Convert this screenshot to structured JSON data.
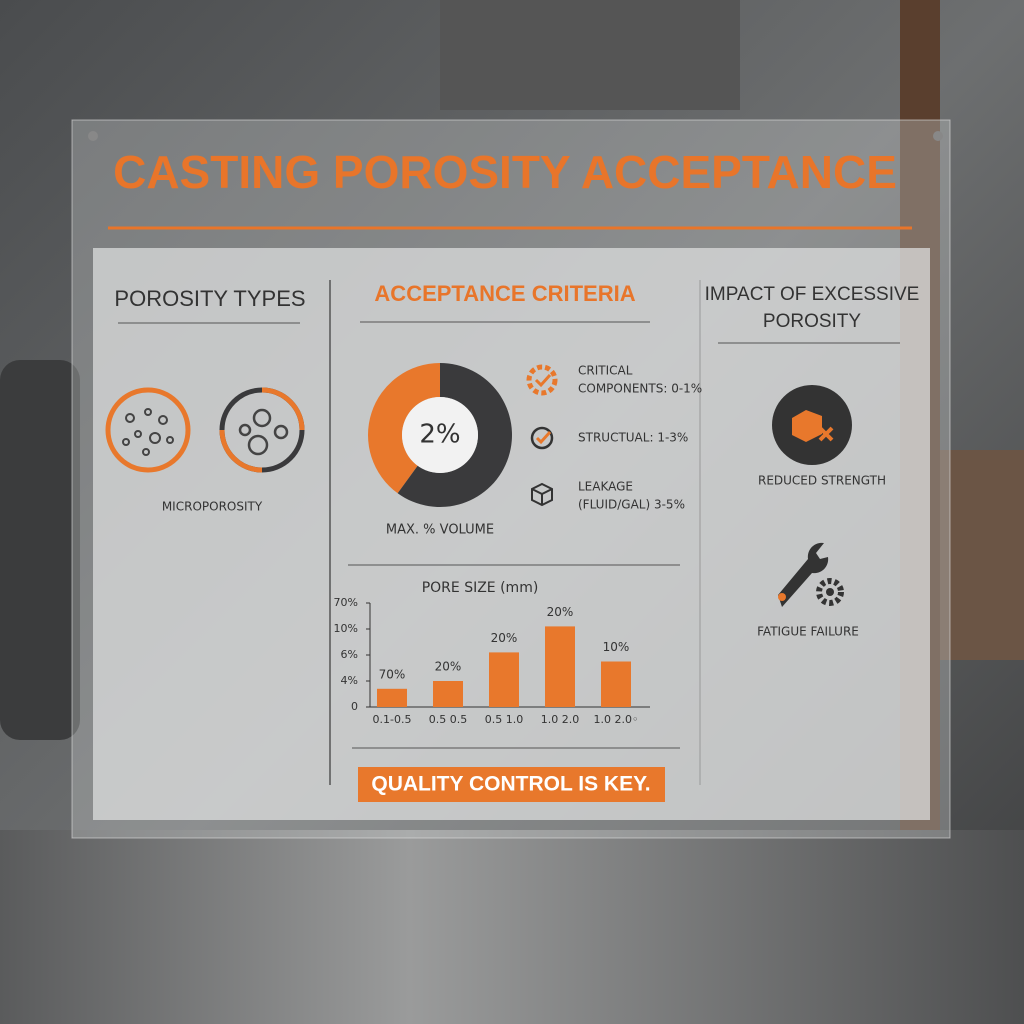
{
  "title": "CASTING POROSITY ACCEPTANCE",
  "porosity_types": {
    "heading": "POROSITY TYPES",
    "label": "MICROPOROSITY"
  },
  "acceptance_criteria": {
    "heading": "ACCEPTANCE CRITERIA",
    "items": [
      {
        "lines": [
          "CRITICAL",
          "COMPONENTS: 0-1%"
        ]
      },
      {
        "lines": [
          "STRUCTUAL: 1-3%"
        ]
      },
      {
        "lines": [
          "LEAKAGE",
          "(FLUID/GAL) 3-5%"
        ]
      }
    ]
  },
  "impact": {
    "heading_lines": [
      "IMPACT OF EXCESSIVE",
      "POROSITY"
    ],
    "items": [
      "REDUCED STRENGTH",
      "FATIGUE FAILURE"
    ]
  },
  "footer": "QUALITY CONTROL IS KEY.",
  "chart_data": [
    {
      "type": "pie",
      "donut": true,
      "center_label": "2%",
      "caption": "MAX. % VOLUME",
      "values": [
        40,
        60
      ],
      "colors": [
        "#e8782c",
        "#3a3a3c"
      ]
    },
    {
      "type": "bar",
      "title": "PORE SIZE (mm)",
      "categories": [
        "0.1-0.5",
        "0.5 0.5",
        "0.5 1.0",
        "1.0 2.0",
        "1.0 2.0◦"
      ],
      "values": [
        0.7,
        1.0,
        2.1,
        3.1,
        1.75
      ],
      "annotations": [
        "70%",
        "20%",
        "20%",
        "20%",
        "10%"
      ],
      "color": "#e8782c",
      "ylim": [
        0,
        4
      ],
      "yticks": [
        0,
        {
          "value": 1,
          "label": "4%"
        },
        {
          "value": 2,
          "label": "6%"
        },
        {
          "value": 3,
          "label": "10%"
        },
        {
          "value": 4,
          "label": "70%"
        }
      ]
    }
  ]
}
